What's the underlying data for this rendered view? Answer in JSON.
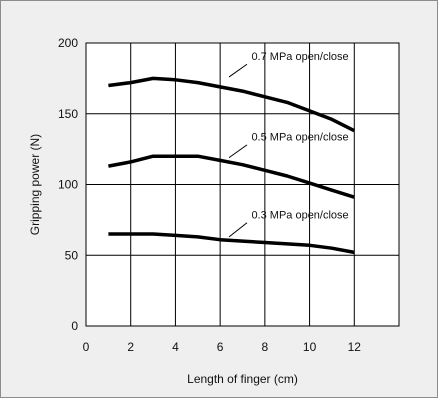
{
  "chart_data": {
    "type": "line",
    "xlabel": "Length of finger (cm)",
    "ylabel": "Gripping power (N)",
    "xlim": [
      0,
      14
    ],
    "ylim": [
      0,
      200
    ],
    "xticks": [
      0,
      2,
      4,
      6,
      8,
      10,
      12
    ],
    "yticks": [
      0,
      50,
      100,
      150,
      200
    ],
    "grid": true,
    "series": [
      {
        "name": "0.7 MPa open/close",
        "x": [
          1,
          2,
          3,
          4,
          5,
          6,
          7,
          8,
          9,
          10,
          11,
          12
        ],
        "values": [
          170,
          172,
          175,
          174,
          172,
          169,
          166,
          162,
          158,
          152,
          146,
          138
        ]
      },
      {
        "name": "0.5 MPa open/close",
        "x": [
          1,
          2,
          3,
          4,
          5,
          6,
          7,
          8,
          9,
          10,
          11,
          12
        ],
        "values": [
          113,
          116,
          120,
          120,
          120,
          117,
          114,
          110,
          106,
          101,
          96,
          91
        ]
      },
      {
        "name": "0.3 MPa open/close",
        "x": [
          1,
          2,
          3,
          4,
          5,
          6,
          7,
          8,
          9,
          10,
          11,
          12
        ],
        "values": [
          65,
          65,
          65,
          64,
          63,
          61,
          60,
          59,
          58,
          57,
          55,
          52
        ]
      }
    ],
    "colors": {
      "line": "#000000",
      "grid": "#000000",
      "plot_background": "#ffffff",
      "panel_background": "#efefef"
    }
  }
}
